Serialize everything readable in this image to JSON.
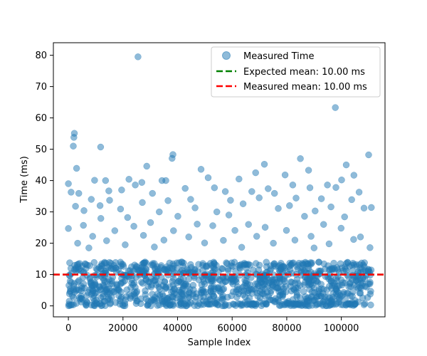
{
  "chart_data": {
    "type": "scatter",
    "xlabel": "Sample Index",
    "ylabel": "Time (ms)",
    "xlim": [
      -5500,
      116000
    ],
    "ylim": [
      -3.5,
      84
    ],
    "xticks": [
      0,
      20000,
      40000,
      60000,
      80000,
      100000
    ],
    "xtick_labels": [
      "0",
      "20000",
      "40000",
      "60000",
      "80000",
      "100000"
    ],
    "yticks": [
      0,
      10,
      20,
      30,
      40,
      50,
      60,
      70,
      80
    ],
    "ytick_labels": [
      "0",
      "10",
      "20",
      "30",
      "40",
      "50",
      "60",
      "70",
      "80"
    ],
    "grid": false,
    "legend": {
      "position": "top-right",
      "entries": [
        {
          "label": "Measured Time",
          "kind": "marker",
          "color": "#1f77b4"
        },
        {
          "label": "Expected mean: 10.00 ms",
          "kind": "dashed-line",
          "color": "#008000"
        },
        {
          "label": "Measured mean: 10.00 ms",
          "kind": "dashed-line",
          "color": "#ff0000"
        }
      ]
    },
    "series": [
      {
        "name": "Measured Time",
        "kind": "scatter",
        "color": "#1f77b4",
        "sample_count": 1120,
        "x_range": [
          0,
          111000
        ],
        "dense_band": [
          0,
          14
        ],
        "outliers": [
          [
            25500,
            79.5
          ],
          [
            97800,
            63.3
          ],
          [
            2200,
            55.1
          ],
          [
            2000,
            53.8
          ],
          [
            1800,
            51.0
          ],
          [
            11800,
            50.7
          ],
          [
            38300,
            48.3
          ],
          [
            110000,
            48.2
          ],
          [
            85000,
            47.0
          ],
          [
            38000,
            47.1
          ],
          [
            28700,
            44.6
          ],
          [
            3000,
            43.9
          ],
          [
            48600,
            43.6
          ],
          [
            101800,
            45.0
          ],
          [
            71800,
            45.2
          ],
          [
            88000,
            43.3
          ],
          [
            68600,
            42.5
          ],
          [
            104600,
            41.7
          ],
          [
            79400,
            41.8
          ],
          [
            51200,
            40.9
          ],
          [
            22200,
            40.4
          ],
          [
            100100,
            40.2
          ],
          [
            13600,
            40.0
          ],
          [
            34300,
            40.0
          ],
          [
            9600,
            40.1
          ],
          [
            35700,
            40.0
          ],
          [
            26900,
            39.4
          ],
          [
            62500,
            40.5
          ],
          [
            0,
            39.0
          ],
          [
            24500,
            38.6
          ],
          [
            42800,
            37.5
          ],
          [
            19500,
            37.0
          ],
          [
            53500,
            37.7
          ],
          [
            73200,
            37.4
          ],
          [
            82200,
            38.6
          ],
          [
            94900,
            38.6
          ],
          [
            88500,
            37.7
          ],
          [
            1000,
            36.3
          ],
          [
            3800,
            35.9
          ],
          [
            14800,
            36.7
          ],
          [
            30800,
            35.9
          ],
          [
            57500,
            36.5
          ],
          [
            67200,
            36.5
          ],
          [
            75500,
            35.9
          ],
          [
            98000,
            37.8
          ],
          [
            106500,
            36.3
          ],
          [
            8400,
            34.0
          ],
          [
            15100,
            33.7
          ],
          [
            36500,
            33.6
          ],
          [
            44800,
            34.0
          ],
          [
            59400,
            33.7
          ],
          [
            69900,
            34.5
          ],
          [
            83400,
            34.4
          ],
          [
            92700,
            34.2
          ],
          [
            103800,
            33.9
          ],
          [
            2600,
            31.8
          ],
          [
            11600,
            32.0
          ],
          [
            27100,
            33.0
          ],
          [
            46400,
            31.3
          ],
          [
            64000,
            32.6
          ],
          [
            81000,
            32.0
          ],
          [
            96200,
            31.6
          ],
          [
            108300,
            31.2
          ],
          [
            111000,
            31.4
          ],
          [
            5700,
            30.4
          ],
          [
            19100,
            30.9
          ],
          [
            33300,
            30.0
          ],
          [
            54400,
            30.0
          ],
          [
            76900,
            31.1
          ],
          [
            90400,
            30.3
          ],
          [
            21700,
            28.2
          ],
          [
            40100,
            28.6
          ],
          [
            58800,
            29.0
          ],
          [
            86500,
            28.6
          ],
          [
            101200,
            28.4
          ],
          [
            11900,
            27.9
          ],
          [
            30100,
            26.6
          ],
          [
            47200,
            26.1
          ],
          [
            66000,
            26.0
          ],
          [
            93500,
            26.0
          ],
          [
            5500,
            25.7
          ],
          [
            24000,
            25.4
          ],
          [
            52900,
            25.6
          ],
          [
            72100,
            25.1
          ],
          [
            99900,
            24.8
          ],
          [
            0,
            24.7
          ],
          [
            17000,
            24.0
          ],
          [
            38500,
            24.0
          ],
          [
            61000,
            24.1
          ],
          [
            79900,
            24.1
          ],
          [
            8900,
            22.2
          ],
          [
            27500,
            22.5
          ],
          [
            44100,
            22.0
          ],
          [
            69000,
            22.2
          ],
          [
            88900,
            22.2
          ],
          [
            107000,
            22.0
          ],
          [
            14000,
            20.8
          ],
          [
            35000,
            21.0
          ],
          [
            56800,
            20.9
          ],
          [
            83000,
            21.0
          ],
          [
            104500,
            21.2
          ],
          [
            3400,
            20.0
          ],
          [
            20800,
            19.5
          ],
          [
            49900,
            20.1
          ],
          [
            75100,
            20.0
          ],
          [
            95500,
            19.8
          ],
          [
            110500,
            18.6
          ],
          [
            7500,
            18.5
          ],
          [
            31500,
            18.8
          ],
          [
            63500,
            18.7
          ],
          [
            90000,
            18.5
          ]
        ]
      },
      {
        "name": "Expected mean: 10.00 ms",
        "kind": "hline",
        "y": 10.0,
        "color": "#008000"
      },
      {
        "name": "Measured mean: 10.00 ms",
        "kind": "hline",
        "y": 10.0,
        "color": "#ff0000"
      }
    ]
  }
}
